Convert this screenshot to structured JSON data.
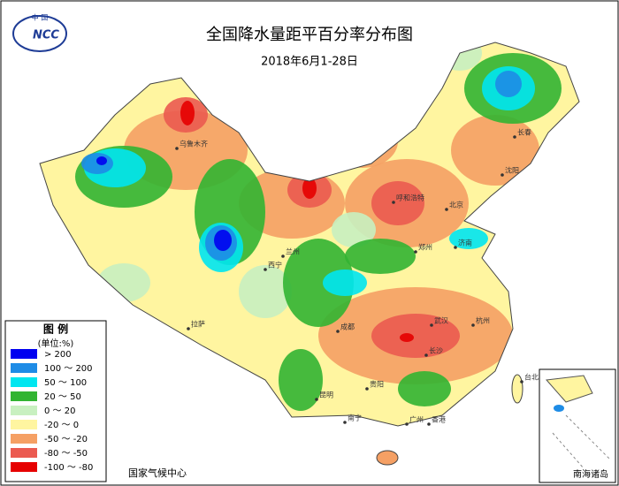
{
  "header": {
    "title": "全国降水量距平百分率分布图",
    "subtitle": "2018年6月1-28日"
  },
  "logo": {
    "top": "中 国",
    "mark": "NCC"
  },
  "legend": {
    "title": "图 例",
    "unit": "(单位:%)",
    "items": [
      {
        "label": "> 200",
        "color": "#0000f0"
      },
      {
        "label": "100 ～ 200",
        "color": "#1e8ce6"
      },
      {
        "label": "50 ～ 100",
        "color": "#00e6f0"
      },
      {
        "label": "20 ～ 50",
        "color": "#32b432"
      },
      {
        "label": "0 ～ 20",
        "color": "#c8f0c0"
      },
      {
        "label": "-20 ～ 0",
        "color": "#fff5a0"
      },
      {
        "label": "-50 ～ -20",
        "color": "#f5a064"
      },
      {
        "label": "-80 ～ -50",
        "color": "#eb5a50"
      },
      {
        "label": "-100 ～ -80",
        "color": "#e60000"
      }
    ]
  },
  "cities": [
    {
      "label": "乌鲁木齐"
    },
    {
      "label": "拉萨"
    },
    {
      "label": "北京"
    },
    {
      "label": "呼和浩特"
    },
    {
      "label": "长春"
    },
    {
      "label": "沈阳"
    },
    {
      "label": "济南"
    },
    {
      "label": "郑州"
    },
    {
      "label": "成都"
    },
    {
      "label": "武汉"
    },
    {
      "label": "长沙"
    },
    {
      "label": "贵阳"
    },
    {
      "label": "昆明"
    },
    {
      "label": "南宁"
    },
    {
      "label": "广州"
    },
    {
      "label": "香港"
    },
    {
      "label": "台北"
    },
    {
      "label": "杭州"
    },
    {
      "label": "西宁"
    },
    {
      "label": "兰州"
    }
  ],
  "footer": "国家气候中心",
  "inset": {
    "label": "南海诸岛"
  }
}
